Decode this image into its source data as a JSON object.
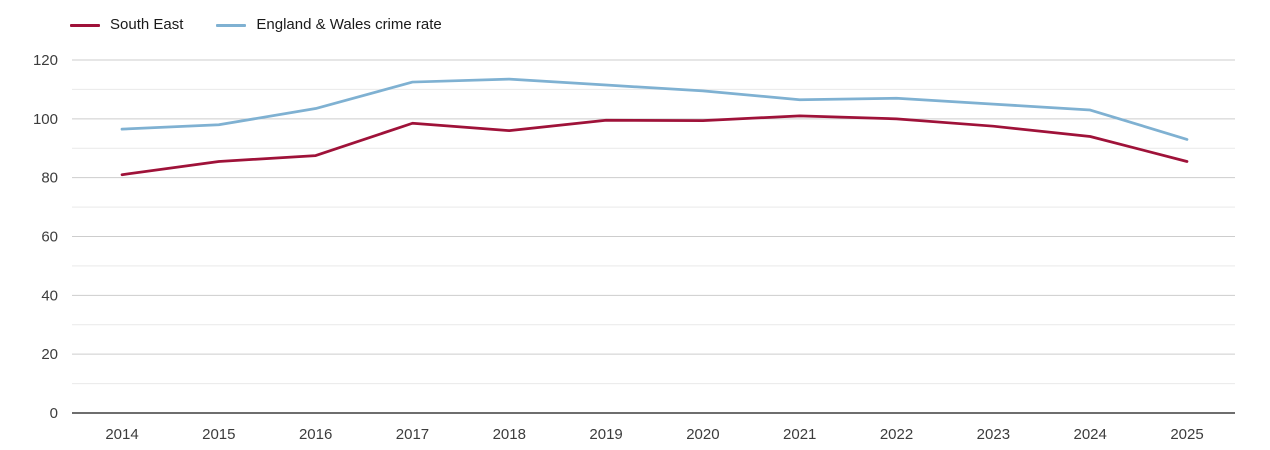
{
  "legend": [
    {
      "label": "South East",
      "color": "#9f1239"
    },
    {
      "label": "England & Wales crime rate",
      "color": "#7fb1d2"
    }
  ],
  "chart_data": {
    "type": "line",
    "x": [
      "2014",
      "2015",
      "2016",
      "2017",
      "2018",
      "2019",
      "2020",
      "2021",
      "2022",
      "2023",
      "2024",
      "2025"
    ],
    "series": [
      {
        "name": "South East",
        "color": "#9f1239",
        "values": [
          81,
          85.5,
          87.5,
          98.5,
          96,
          99.5,
          99.4,
          101,
          100,
          97.5,
          94,
          85.5
        ]
      },
      {
        "name": "England & Wales crime rate",
        "color": "#7fb1d2",
        "values": [
          96.5,
          98,
          103.5,
          112.5,
          113.5,
          111.5,
          109.5,
          106.5,
          107,
          105,
          103,
          93
        ]
      }
    ],
    "title": "",
    "xlabel": "",
    "ylabel": "",
    "ylim": [
      0,
      120
    ],
    "y_tick_labels": [
      "0",
      "20",
      "40",
      "60",
      "80",
      "100",
      "120"
    ],
    "y_tick_values": [
      0,
      20,
      40,
      60,
      80,
      100,
      120
    ],
    "y_minor_values": [
      10,
      30,
      50,
      70,
      90,
      110
    ],
    "grid": true,
    "legend_position": "top-left"
  },
  "style": {
    "major_grid_color": "#cdcdcd",
    "minor_grid_color": "#e9e9e9",
    "axis_line_color": "#3f3f3f",
    "tick_label_color": "#3c3c3c",
    "background": "#ffffff"
  }
}
